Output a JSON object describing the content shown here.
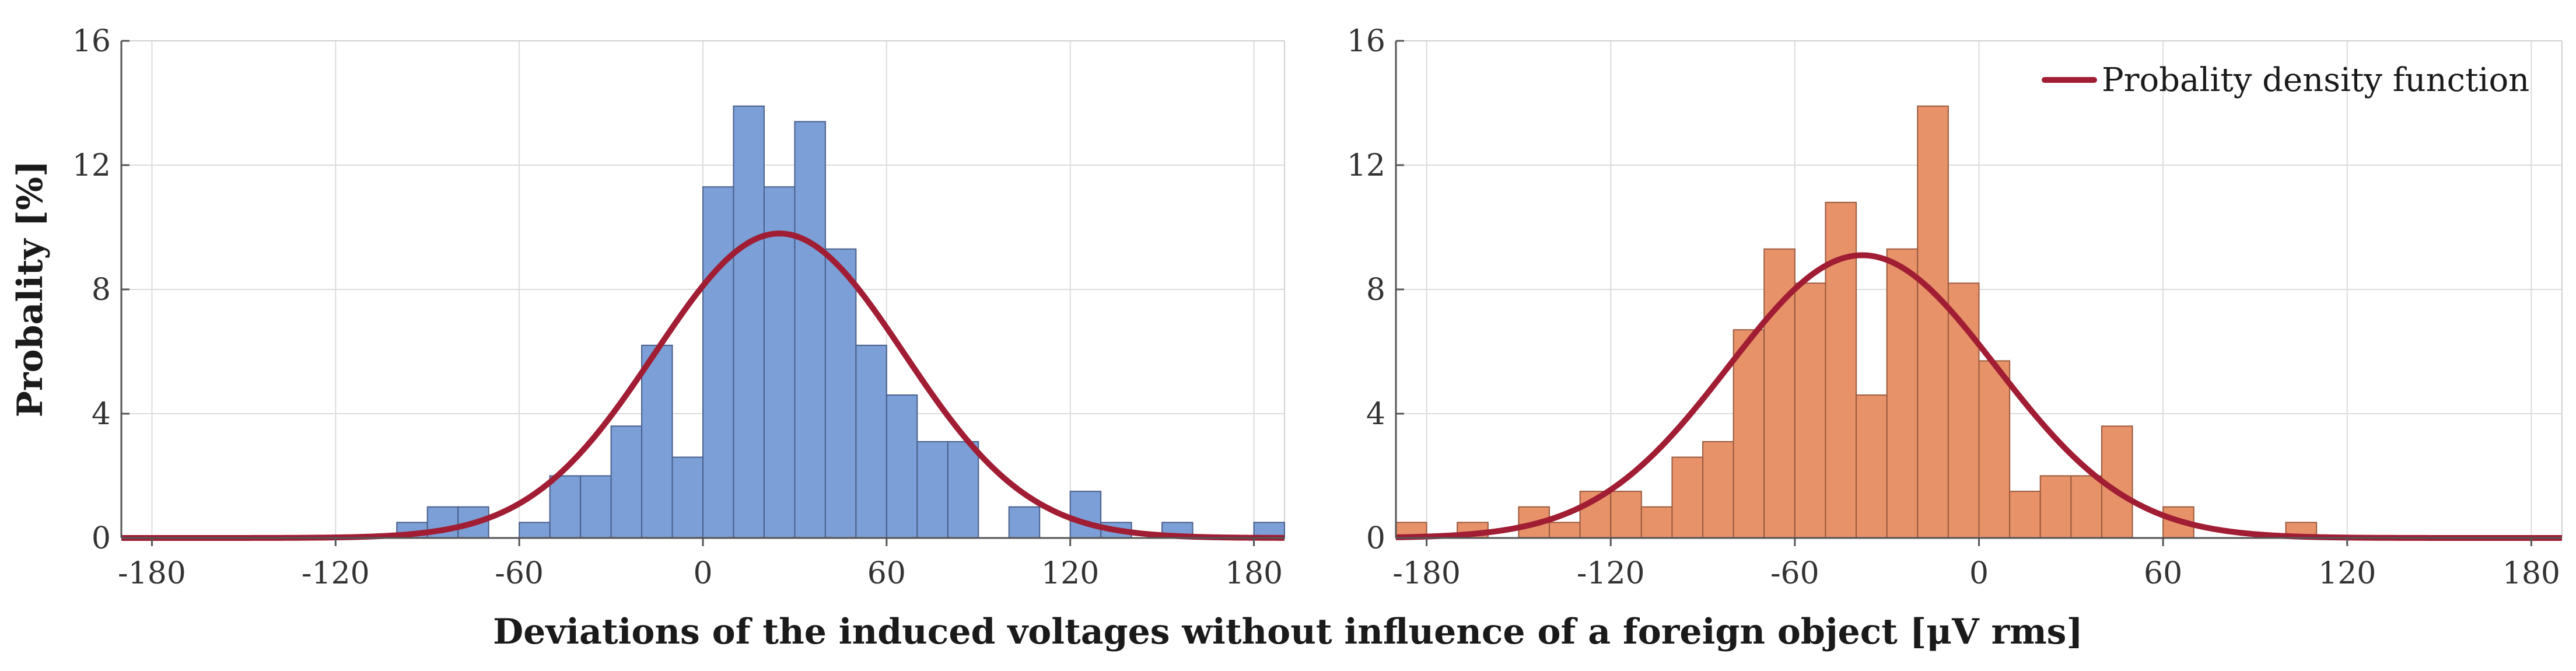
{
  "figure": {
    "xlabel": "Deviations of the induced voltages without influence of a foreign object [μV rms]",
    "ylabel": "Probality [%]",
    "colors": {
      "left_bar_fill": "#7b9fd6",
      "left_bar_edge": "#4a5f8c",
      "right_bar_fill": "#e8926a",
      "right_bar_edge": "#9a5a3c",
      "pdf_line": "#a11d33"
    }
  },
  "chart_data": [
    {
      "type": "bar",
      "subtype": "histogram",
      "panel": "left",
      "bin_width": 10,
      "x_tick_labels": [
        "-180",
        "-120",
        "-60",
        "0",
        "60",
        "120",
        "180"
      ],
      "x_ticks": [
        -180,
        -120,
        -60,
        0,
        60,
        120,
        180
      ],
      "y_tick_labels": [
        "0",
        "4",
        "8",
        "12",
        "16"
      ],
      "y_ticks": [
        0,
        4,
        8,
        12,
        16
      ],
      "xlim": [
        -190,
        190
      ],
      "ylim": [
        0,
        16
      ],
      "bins": [
        {
          "x": -100,
          "value": 0.5
        },
        {
          "x": -90,
          "value": 1.0
        },
        {
          "x": -80,
          "value": 1.0
        },
        {
          "x": -60,
          "value": 0.5
        },
        {
          "x": -50,
          "value": 2.0
        },
        {
          "x": -40,
          "value": 2.0
        },
        {
          "x": -30,
          "value": 3.6
        },
        {
          "x": -20,
          "value": 6.2
        },
        {
          "x": -10,
          "value": 2.6
        },
        {
          "x": 0,
          "value": 11.3
        },
        {
          "x": 10,
          "value": 13.9
        },
        {
          "x": 20,
          "value": 11.3
        },
        {
          "x": 30,
          "value": 13.4
        },
        {
          "x": 40,
          "value": 9.3
        },
        {
          "x": 50,
          "value": 6.2
        },
        {
          "x": 60,
          "value": 4.6
        },
        {
          "x": 70,
          "value": 3.1
        },
        {
          "x": 80,
          "value": 3.1
        },
        {
          "x": 100,
          "value": 1.0
        },
        {
          "x": 120,
          "value": 1.5
        },
        {
          "x": 130,
          "value": 0.5
        },
        {
          "x": 150,
          "value": 0.5
        },
        {
          "x": 180,
          "value": 0.5
        }
      ],
      "pdf": {
        "mean": 25,
        "std": 40.7,
        "peak": 9.8
      }
    },
    {
      "type": "bar",
      "subtype": "histogram",
      "panel": "right",
      "bin_width": 10,
      "x_tick_labels": [
        "-180",
        "-120",
        "-60",
        "0",
        "60",
        "120",
        "180"
      ],
      "x_ticks": [
        -180,
        -120,
        -60,
        0,
        60,
        120,
        180
      ],
      "y_tick_labels": [
        "0",
        "4",
        "8",
        "12",
        "16"
      ],
      "y_ticks": [
        0,
        4,
        8,
        12,
        16
      ],
      "xlim": [
        -190,
        190
      ],
      "ylim": [
        0,
        16
      ],
      "bins": [
        {
          "x": -190,
          "value": 0.5
        },
        {
          "x": -170,
          "value": 0.5
        },
        {
          "x": -150,
          "value": 1.0
        },
        {
          "x": -140,
          "value": 0.5
        },
        {
          "x": -130,
          "value": 1.5
        },
        {
          "x": -120,
          "value": 1.5
        },
        {
          "x": -110,
          "value": 1.0
        },
        {
          "x": -100,
          "value": 2.6
        },
        {
          "x": -90,
          "value": 3.1
        },
        {
          "x": -80,
          "value": 6.7
        },
        {
          "x": -70,
          "value": 9.3
        },
        {
          "x": -60,
          "value": 8.2
        },
        {
          "x": -50,
          "value": 10.8
        },
        {
          "x": -40,
          "value": 4.6
        },
        {
          "x": -30,
          "value": 9.3
        },
        {
          "x": -20,
          "value": 13.9
        },
        {
          "x": -10,
          "value": 8.2
        },
        {
          "x": 0,
          "value": 5.7
        },
        {
          "x": 10,
          "value": 1.5
        },
        {
          "x": 20,
          "value": 2.0
        },
        {
          "x": 30,
          "value": 2.0
        },
        {
          "x": 40,
          "value": 3.6
        },
        {
          "x": 60,
          "value": 1.0
        },
        {
          "x": 100,
          "value": 0.5
        }
      ],
      "pdf": {
        "mean": -38,
        "std": 43.6,
        "peak": 9.1
      },
      "legend": {
        "label": "Probality density function",
        "position": "top-right"
      }
    }
  ]
}
